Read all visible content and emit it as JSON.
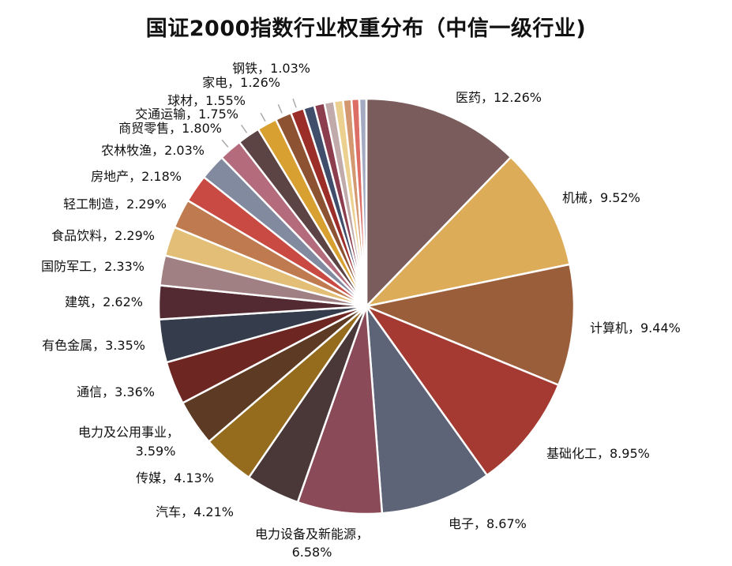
{
  "chart_data": {
    "type": "pie",
    "title": "国证2000指数行业权重分布（中信一级行业)",
    "slices": [
      {
        "label": "医药，12.26%",
        "value": 12.26,
        "color": "#7a5c5c"
      },
      {
        "label": "机械，9.52%",
        "value": 9.52,
        "color": "#dcac58"
      },
      {
        "label": "计算机，9.44%",
        "value": 9.44,
        "color": "#9a5e3a"
      },
      {
        "label": "基础化工，8.95%",
        "value": 8.95,
        "color": "#a43a32"
      },
      {
        "label": "电子，8.67%",
        "value": 8.67,
        "color": "#5d6478"
      },
      {
        "label": "电力设备及新能源，",
        "label2": "6.58%",
        "value": 6.58,
        "color": "#8a4a58"
      },
      {
        "label": "汽车，4.21%",
        "value": 4.21,
        "color": "#4a3838"
      },
      {
        "label": "传媒，4.13%",
        "value": 4.13,
        "color": "#956c1e"
      },
      {
        "label": "电力及公用事业，",
        "label2": "3.59%",
        "value": 3.59,
        "color": "#5c3a24"
      },
      {
        "label": "通信，3.36%",
        "value": 3.36,
        "color": "#6e2622"
      },
      {
        "label": "有色金属，3.35%",
        "value": 3.35,
        "color": "#353c4c"
      },
      {
        "label": "建筑，2.62%",
        "value": 2.62,
        "color": "#542a32"
      },
      {
        "label": "国防军工，2.33%",
        "value": 2.33,
        "color": "#a08082"
      },
      {
        "label": "食品饮料，2.29%",
        "value": 2.29,
        "color": "#e2be76"
      },
      {
        "label": "轻工制造，2.29%",
        "value": 2.29,
        "color": "#c07a50"
      },
      {
        "label": "房地产，2.18%",
        "value": 2.18,
        "color": "#c84a42"
      },
      {
        "label": "农林牧渔，2.03%",
        "value": 2.03,
        "color": "#828aa0"
      },
      {
        "label": "商贸零售，1.80%",
        "value": 1.8,
        "color": "#b46c7c"
      },
      {
        "label": "交通运输，1.75%",
        "value": 1.75,
        "color": "#5c4444"
      },
      {
        "label": "球材，1.55%",
        "value": 1.55,
        "color": "#d8a030"
      },
      {
        "label": "家电，1.26%",
        "value": 1.26,
        "color": "#8c5232"
      },
      {
        "label": "钢铁，1.03%",
        "value": 1.03,
        "color": "#9c2e2a"
      },
      {
        "value": 0.85,
        "color": "#404e6c"
      },
      {
        "value": 0.8,
        "color": "#8c3e4e"
      },
      {
        "value": 0.75,
        "color": "#c0aaaa"
      },
      {
        "value": 0.7,
        "color": "#ecd090"
      },
      {
        "value": 0.65,
        "color": "#d49870"
      },
      {
        "value": 0.6,
        "color": "#dc6e66"
      },
      {
        "value": 0.55,
        "color": "#a4aac2"
      }
    ]
  }
}
